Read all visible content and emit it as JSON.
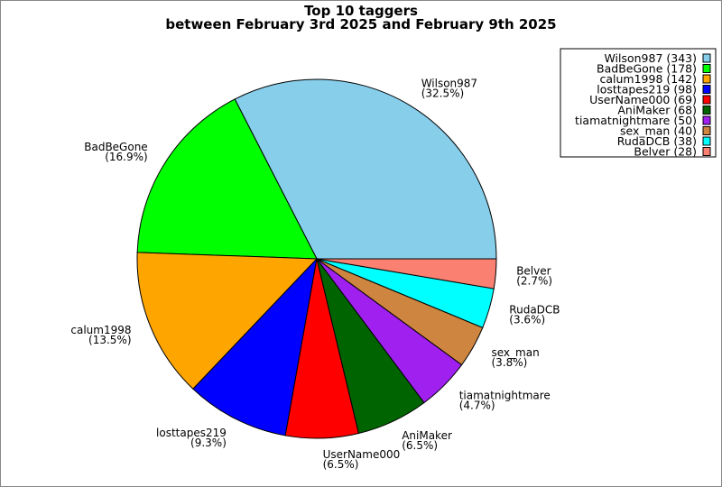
{
  "chart_data": {
    "type": "pie",
    "title": "Top 10 taggers",
    "subtitle": "between February 3rd 2025 and February 9th 2025",
    "legend_position": "top-right",
    "start_angle_deg": 0,
    "direction": "counterclockwise",
    "slices": [
      {
        "name": "Wilson987",
        "value": 343,
        "percent": "32.5%",
        "color": "#87ceeb",
        "legend": "Wilson987 (343)"
      },
      {
        "name": "BadBeGone",
        "value": 178,
        "percent": "16.9%",
        "color": "#00ff00",
        "legend": "BadBeGone (178)"
      },
      {
        "name": "calum1998",
        "value": 142,
        "percent": "13.5%",
        "color": "#ffa500",
        "legend": "calum1998 (142)"
      },
      {
        "name": "losttapes219",
        "value": 98,
        "percent": "9.3%",
        "color": "#0000ff",
        "legend": "losttapes219 (98)"
      },
      {
        "name": "UserName000",
        "value": 69,
        "percent": "6.5%",
        "color": "#ff0000",
        "legend": "UserName000 (69)"
      },
      {
        "name": "AniMaker",
        "value": 68,
        "percent": "6.5%",
        "color": "#006400",
        "legend": "AniMaker (68)"
      },
      {
        "name": "tiamatnightmare",
        "value": 50,
        "percent": "4.7%",
        "color": "#a020f0",
        "legend": "tiamatnightmare (50)"
      },
      {
        "name": "sex_man",
        "value": 40,
        "percent": "3.8%",
        "color": "#cd853f",
        "legend": "sex_man (40)"
      },
      {
        "name": "RudaDCB",
        "value": 38,
        "percent": "3.6%",
        "color": "#00ffff",
        "legend": "RudaDCB (38)"
      },
      {
        "name": "Belver",
        "value": 28,
        "percent": "2.7%",
        "color": "#fa8072",
        "legend": "Belver (28)"
      }
    ]
  }
}
